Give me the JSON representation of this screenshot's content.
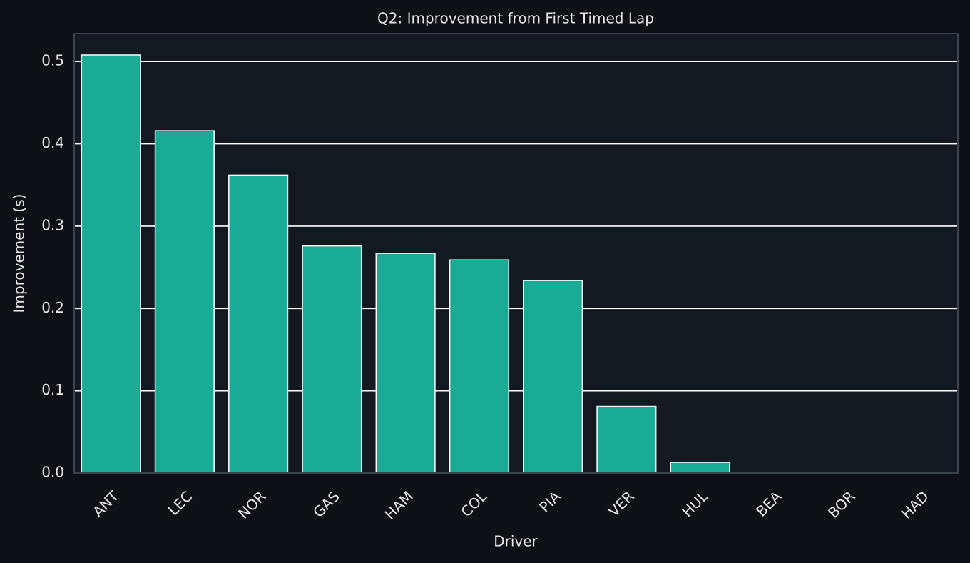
{
  "chart_data": {
    "type": "bar",
    "title": "Q2: Improvement from First Timed Lap",
    "x_label": "Driver",
    "y_label": "Improvement (s)",
    "categories": [
      "ANT",
      "LEC",
      "NOR",
      "GAS",
      "HAM",
      "COL",
      "PIA",
      "VER",
      "HUL",
      "BEA",
      "BOR",
      "HAD"
    ],
    "values": [
      0.508,
      0.416,
      0.362,
      0.276,
      0.267,
      0.259,
      0.234,
      0.081,
      0.013,
      0,
      0,
      0
    ],
    "color": "#1aab96",
    "ylim": [
      0,
      0.534
    ],
    "yticks": [
      {
        "value": 0,
        "label": "0.0"
      },
      0.1,
      0.2,
      0.3,
      0.4,
      0.5
    ],
    "grid": true
  }
}
